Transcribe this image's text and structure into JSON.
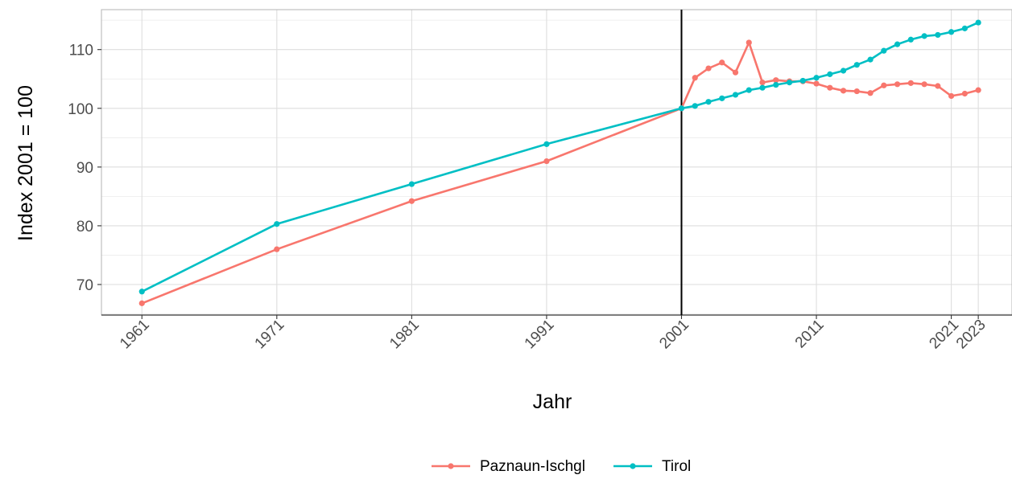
{
  "chart_data": {
    "type": "line",
    "xlabel": "Jahr",
    "ylabel": "Index 2001 = 100",
    "x_ticks": [
      1961,
      1971,
      1981,
      1991,
      2001,
      2011,
      2021,
      2023
    ],
    "y_ticks": [
      70,
      80,
      90,
      100,
      110
    ],
    "xlim": [
      1958,
      2025.5
    ],
    "ylim": [
      64.8,
      116.8
    ],
    "grid": true,
    "reference_line_x": 2001,
    "legend_position": "bottom",
    "series": [
      {
        "name": "Paznaun-Ischgl",
        "color": "#F8766D",
        "points": [
          [
            1961,
            66.8
          ],
          [
            1971,
            76.0
          ],
          [
            1981,
            84.2
          ],
          [
            1991,
            91.0
          ],
          [
            2001,
            100.0
          ],
          [
            2002,
            105.2
          ],
          [
            2003,
            106.8
          ],
          [
            2004,
            107.8
          ],
          [
            2005,
            106.1
          ],
          [
            2006,
            111.2
          ],
          [
            2007,
            104.4
          ],
          [
            2008,
            104.8
          ],
          [
            2009,
            104.6
          ],
          [
            2010,
            104.6
          ],
          [
            2011,
            104.2
          ],
          [
            2012,
            103.5
          ],
          [
            2013,
            103.0
          ],
          [
            2014,
            102.9
          ],
          [
            2015,
            102.6
          ],
          [
            2016,
            103.9
          ],
          [
            2017,
            104.1
          ],
          [
            2018,
            104.3
          ],
          [
            2019,
            104.1
          ],
          [
            2020,
            103.8
          ],
          [
            2021,
            102.1
          ],
          [
            2022,
            102.5
          ],
          [
            2023,
            103.1
          ]
        ]
      },
      {
        "name": "Tirol",
        "color": "#00BFC4",
        "points": [
          [
            1961,
            68.8
          ],
          [
            1971,
            80.3
          ],
          [
            1981,
            87.1
          ],
          [
            1991,
            93.9
          ],
          [
            2001,
            100.0
          ],
          [
            2002,
            100.4
          ],
          [
            2003,
            101.1
          ],
          [
            2004,
            101.7
          ],
          [
            2005,
            102.3
          ],
          [
            2006,
            103.1
          ],
          [
            2007,
            103.5
          ],
          [
            2008,
            104.0
          ],
          [
            2009,
            104.4
          ],
          [
            2010,
            104.7
          ],
          [
            2011,
            105.2
          ],
          [
            2012,
            105.8
          ],
          [
            2013,
            106.4
          ],
          [
            2014,
            107.4
          ],
          [
            2015,
            108.3
          ],
          [
            2016,
            109.8
          ],
          [
            2017,
            110.9
          ],
          [
            2018,
            111.7
          ],
          [
            2019,
            112.3
          ],
          [
            2020,
            112.5
          ],
          [
            2021,
            113.0
          ],
          [
            2022,
            113.6
          ],
          [
            2023,
            114.6
          ]
        ]
      }
    ]
  }
}
